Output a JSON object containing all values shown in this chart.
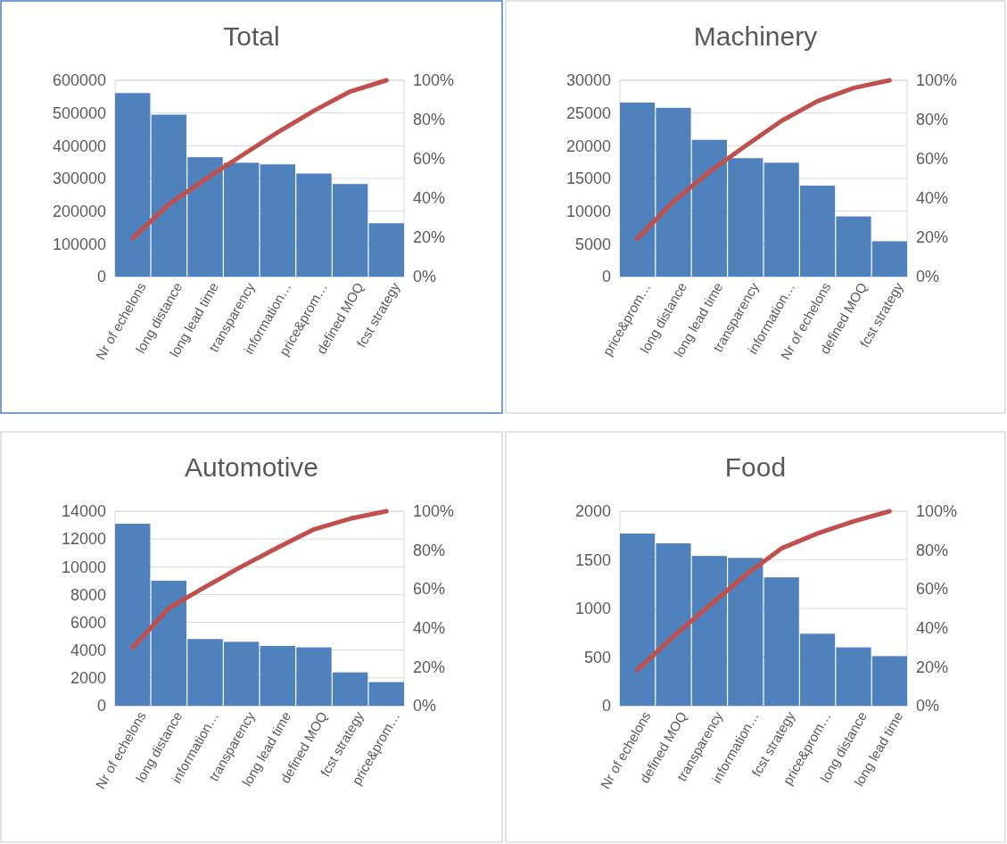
{
  "chart_data": [
    {
      "type": "bar",
      "title": "Total",
      "categories": [
        "Nr of echelons",
        "long distance",
        "long lead time",
        "transparency",
        "information…",
        "price&prom…",
        "defined MOQ",
        "fcst strategy"
      ],
      "series": [
        {
          "color": "#4f81bd",
          "values": [
            561000,
            495000,
            365000,
            348000,
            343000,
            315000,
            283000,
            163000
          ]
        },
        {
          "type": "line",
          "axis": "y2",
          "color": "#c0504d",
          "values": [
            19.5,
            36.8,
            49.5,
            61.6,
            73.5,
            84.5,
            94.3,
            100
          ]
        }
      ],
      "ylim": [
        0,
        600000
      ],
      "yticks": [
        0,
        100000,
        200000,
        300000,
        400000,
        500000,
        600000
      ],
      "y2lim": [
        0,
        100
      ],
      "y2ticks": [
        {
          "value": 0,
          "label": "0%"
        },
        {
          "value": 20,
          "label": "20%"
        },
        {
          "value": 40,
          "label": "40%"
        },
        {
          "value": 60,
          "label": "60%"
        },
        {
          "value": 80,
          "label": "80%"
        },
        {
          "value": 100,
          "label": "100%"
        }
      ],
      "grid": "y",
      "marker": "none"
    },
    {
      "type": "bar",
      "title": "Machinery",
      "categories": [
        "price&prom…",
        "long distance",
        "long lead time",
        "transparency",
        "information…",
        "Nr of echelons",
        "defined MOQ",
        "fcst strategy"
      ],
      "series": [
        {
          "color": "#4f81bd",
          "values": [
            26600,
            25800,
            20900,
            18100,
            17400,
            13900,
            9200,
            5400
          ]
        },
        {
          "type": "line",
          "axis": "y2",
          "color": "#c0504d",
          "values": [
            19.4,
            38.2,
            53.4,
            66.6,
            79.3,
            89.4,
            96.1,
            100
          ]
        }
      ],
      "ylim": [
        0,
        30000
      ],
      "yticks": [
        0,
        5000,
        10000,
        15000,
        20000,
        25000,
        30000
      ],
      "y2lim": [
        0,
        100
      ],
      "y2ticks": [
        {
          "value": 0,
          "label": "0%"
        },
        {
          "value": 20,
          "label": "20%"
        },
        {
          "value": 40,
          "label": "40%"
        },
        {
          "value": 60,
          "label": "60%"
        },
        {
          "value": 80,
          "label": "80%"
        },
        {
          "value": 100,
          "label": "100%"
        }
      ],
      "grid": "y",
      "marker": "none"
    },
    {
      "type": "bar",
      "title": "Automotive",
      "categories": [
        "Nr of echelons",
        "long distance",
        "information…",
        "transparency",
        "long lead time",
        "defined MOQ",
        "fcst strategy",
        "price&prom…"
      ],
      "series": [
        {
          "color": "#4f81bd",
          "values": [
            13100,
            9000,
            4800,
            4600,
            4300,
            4200,
            2400,
            1700
          ]
        },
        {
          "type": "line",
          "axis": "y2",
          "color": "#c0504d",
          "values": [
            29.8,
            50.2,
            61.1,
            71.5,
            81.3,
            90.7,
            96.2,
            100
          ]
        }
      ],
      "ylim": [
        0,
        14000
      ],
      "yticks": [
        0,
        2000,
        4000,
        6000,
        8000,
        10000,
        12000,
        14000
      ],
      "y2lim": [
        0,
        100
      ],
      "y2ticks": [
        {
          "value": 0,
          "label": "0%"
        },
        {
          "value": 20,
          "label": "20%"
        },
        {
          "value": 40,
          "label": "40%"
        },
        {
          "value": 60,
          "label": "60%"
        },
        {
          "value": 80,
          "label": "80%"
        },
        {
          "value": 100,
          "label": "100%"
        }
      ],
      "grid": "y",
      "marker": "none"
    },
    {
      "type": "bar",
      "title": "Food",
      "categories": [
        "Nr of echelons",
        "defined MOQ",
        "transparency",
        "information…",
        "fcst strategy",
        "price&prom…",
        "long distance",
        "long lead time"
      ],
      "series": [
        {
          "color": "#4f81bd",
          "values": [
            1770,
            1670,
            1540,
            1520,
            1320,
            740,
            600,
            510
          ]
        },
        {
          "type": "line",
          "axis": "y2",
          "color": "#c0504d",
          "values": [
            18.4,
            35.6,
            51.5,
            67.2,
            80.9,
            88.6,
            94.8,
            100
          ]
        }
      ],
      "ylim": [
        0,
        2000
      ],
      "yticks": [
        0,
        500,
        1000,
        1500,
        2000
      ],
      "y2lim": [
        0,
        100
      ],
      "y2ticks": [
        {
          "value": 0,
          "label": "0%"
        },
        {
          "value": 20,
          "label": "20%"
        },
        {
          "value": 40,
          "label": "40%"
        },
        {
          "value": 60,
          "label": "60%"
        },
        {
          "value": 80,
          "label": "80%"
        },
        {
          "value": 100,
          "label": "100%"
        }
      ],
      "grid": "y",
      "marker": "none"
    }
  ]
}
